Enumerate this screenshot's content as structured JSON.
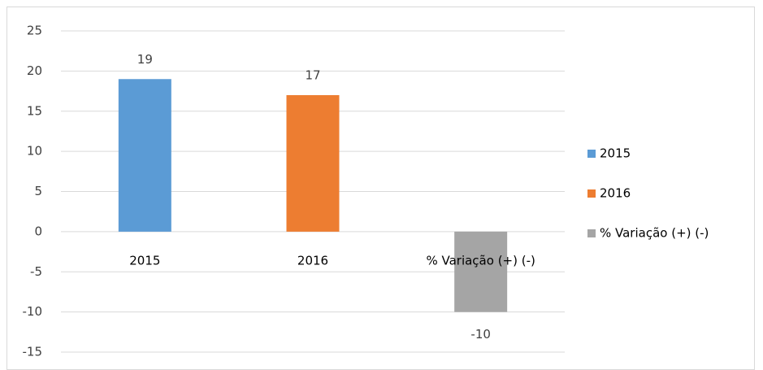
{
  "chart_data": {
    "type": "bar",
    "categories": [
      "2015",
      "2016",
      "% Variação (+) (-)"
    ],
    "values": [
      19,
      17,
      -10
    ],
    "colors": [
      "#5b9bd5",
      "#ed7d31",
      "#a5a5a5"
    ],
    "ylim": [
      -15,
      25
    ],
    "yticks": [
      -15,
      -10,
      -5,
      0,
      5,
      10,
      15,
      20,
      25
    ],
    "grid": true,
    "legend": "right"
  }
}
